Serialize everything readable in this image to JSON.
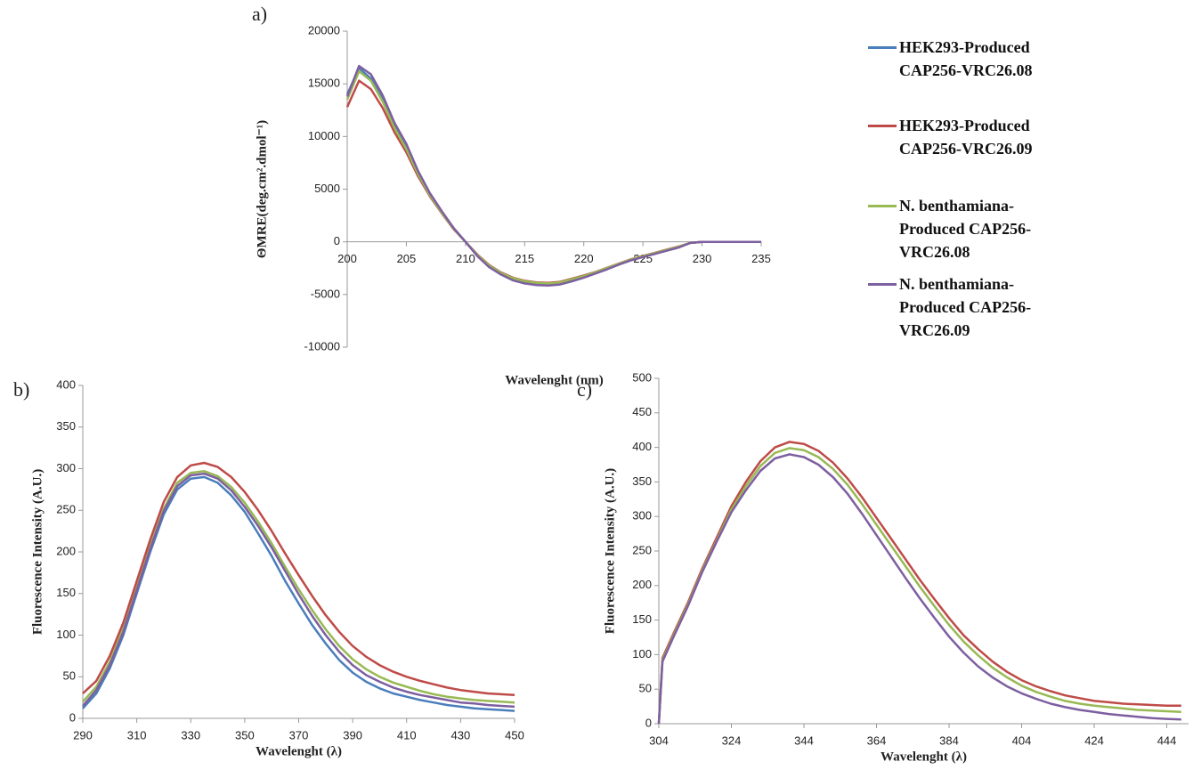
{
  "chart_data": [
    {
      "type": "line",
      "label": "a)",
      "x_label": "Wavelenght (nm)",
      "y_label": "ΘMRE(deg.cm².dmol⁻¹)",
      "x": [
        200,
        201,
        202,
        203,
        204,
        205,
        206,
        207,
        208,
        209,
        210,
        211,
        212,
        213,
        214,
        215,
        216,
        217,
        218,
        219,
        220,
        221,
        222,
        223,
        224,
        225,
        226,
        227,
        228,
        229,
        230,
        231,
        232,
        233,
        234,
        235
      ],
      "xlim": [
        200,
        235
      ],
      "xticks": [
        200,
        205,
        210,
        215,
        220,
        225,
        230,
        235
      ],
      "ylim": [
        -10000,
        20000
      ],
      "yticks": [
        -10000,
        -5000,
        0,
        5000,
        10000,
        15000,
        20000
      ],
      "series": [
        {
          "name": "HEK293-Produced CAP256-VRC26.08",
          "color": "#4a7ebb",
          "values": [
            14000,
            16500,
            15500,
            13500,
            11000,
            9000,
            6500,
            4500,
            2800,
            1300,
            0,
            -1300,
            -2300,
            -3000,
            -3500,
            -3800,
            -3950,
            -4000,
            -3900,
            -3600,
            -3300,
            -2900,
            -2500,
            -2100,
            -1700,
            -1400,
            -1100,
            -800,
            -500,
            -100,
            0,
            0,
            0,
            0,
            0,
            0
          ]
        },
        {
          "name": "HEK293-Produced CAP256-VRC26.09",
          "color": "#be4b48",
          "values": [
            12800,
            15300,
            14500,
            12700,
            10400,
            8500,
            6200,
            4300,
            2700,
            1200,
            0,
            -1200,
            -2200,
            -2900,
            -3400,
            -3700,
            -3850,
            -3900,
            -3800,
            -3500,
            -3200,
            -2850,
            -2450,
            -2050,
            -1650,
            -1350,
            -1050,
            -750,
            -450,
            -100,
            0,
            0,
            0,
            0,
            0,
            0
          ]
        },
        {
          "name": "N. benthamiana-Produced CAP256-VRC26.08",
          "color": "#98b954",
          "values": [
            13500,
            16200,
            15300,
            13300,
            10800,
            8800,
            6400,
            4400,
            2750,
            1250,
            0,
            -1250,
            -2250,
            -2950,
            -3450,
            -3750,
            -3900,
            -3950,
            -3850,
            -3550,
            -3250,
            -2875,
            -2475,
            -2075,
            -1675,
            -1375,
            -1075,
            -775,
            -475,
            -100,
            0,
            0,
            0,
            0,
            0,
            0
          ]
        },
        {
          "name": "N. benthamiana-Produced CAP256-VRC26.09",
          "color": "#7d5fa0",
          "values": [
            13800,
            16700,
            15900,
            13900,
            11300,
            9300,
            6700,
            4600,
            2900,
            1300,
            0,
            -1350,
            -2400,
            -3100,
            -3650,
            -3950,
            -4100,
            -4150,
            -4050,
            -3750,
            -3400,
            -3000,
            -2600,
            -2150,
            -1750,
            -1450,
            -1150,
            -850,
            -550,
            -100,
            0,
            0,
            0,
            0,
            0,
            0
          ]
        }
      ]
    },
    {
      "type": "line",
      "label": "b)",
      "x_label": "Wavelenght (λ)",
      "y_label": "Fluorescence Intensity (A.U.)",
      "x": [
        290,
        295,
        300,
        305,
        310,
        315,
        320,
        325,
        330,
        335,
        340,
        345,
        350,
        355,
        360,
        365,
        370,
        375,
        380,
        385,
        390,
        395,
        400,
        405,
        410,
        415,
        420,
        425,
        430,
        435,
        440,
        445,
        450
      ],
      "xlim": [
        290,
        450
      ],
      "xticks": [
        290,
        310,
        330,
        350,
        370,
        390,
        410,
        430,
        450
      ],
      "ylim": [
        0,
        400
      ],
      "yticks": [
        0,
        50,
        100,
        150,
        200,
        250,
        300,
        350,
        400
      ],
      "series": [
        {
          "color": "#4a7ebb",
          "values": [
            12,
            30,
            60,
            100,
            150,
            200,
            245,
            275,
            288,
            290,
            283,
            268,
            248,
            222,
            195,
            165,
            138,
            112,
            90,
            70,
            55,
            44,
            36,
            30,
            26,
            22,
            19,
            16,
            14,
            12,
            11,
            10,
            9
          ]
        },
        {
          "color": "#98b954",
          "values": [
            20,
            38,
            68,
            108,
            158,
            208,
            252,
            283,
            295,
            297,
            291,
            278,
            259,
            236,
            210,
            182,
            155,
            130,
            107,
            87,
            71,
            59,
            50,
            43,
            38,
            33,
            29,
            26,
            24,
            22,
            21,
            20,
            19
          ]
        },
        {
          "color": "#7d5fa0",
          "values": [
            15,
            34,
            64,
            104,
            154,
            204,
            249,
            279,
            292,
            294,
            288,
            274,
            254,
            231,
            205,
            177,
            149,
            123,
            100,
            80,
            64,
            52,
            44,
            37,
            32,
            28,
            25,
            22,
            19,
            18,
            16,
            15,
            14
          ]
        },
        {
          "color": "#be4b48",
          "values": [
            30,
            45,
            75,
            115,
            165,
            215,
            260,
            290,
            304,
            307,
            302,
            290,
            272,
            250,
            225,
            198,
            172,
            147,
            124,
            104,
            87,
            74,
            64,
            56,
            50,
            45,
            41,
            37,
            34,
            32,
            30,
            29,
            28
          ]
        }
      ]
    },
    {
      "type": "line",
      "label": "c)",
      "x_label": "Wavelenght (λ)",
      "y_label": "Fluorescence Intensity (A.U.)",
      "x": [
        304,
        305,
        308,
        312,
        316,
        320,
        324,
        328,
        332,
        336,
        340,
        344,
        348,
        352,
        356,
        360,
        364,
        368,
        372,
        376,
        380,
        384,
        388,
        392,
        396,
        400,
        404,
        408,
        412,
        416,
        420,
        424,
        428,
        432,
        436,
        440,
        444,
        448
      ],
      "xlim": [
        304,
        450
      ],
      "xticks": [
        304,
        324,
        344,
        364,
        384,
        404,
        424,
        444
      ],
      "ylim": [
        0,
        500
      ],
      "yticks": [
        0,
        50,
        100,
        150,
        200,
        250,
        300,
        350,
        400,
        450,
        500
      ],
      "series": [
        {
          "color": "#be4b48",
          "values": [
            0,
            95,
            130,
            175,
            225,
            270,
            315,
            350,
            380,
            400,
            408,
            405,
            395,
            378,
            355,
            328,
            298,
            268,
            238,
            208,
            180,
            153,
            128,
            108,
            90,
            75,
            63,
            54,
            47,
            41,
            37,
            33,
            31,
            29,
            28,
            27,
            26,
            26
          ]
        },
        {
          "color": "#98b954",
          "values": [
            0,
            92,
            127,
            172,
            222,
            266,
            310,
            344,
            373,
            392,
            399,
            396,
            386,
            369,
            346,
            318,
            288,
            258,
            228,
            198,
            170,
            143,
            119,
            99,
            81,
            67,
            55,
            46,
            39,
            33,
            29,
            26,
            24,
            22,
            20,
            19,
            18,
            17
          ]
        },
        {
          "color": "#7d5fa0",
          "values": [
            0,
            90,
            125,
            170,
            220,
            264,
            306,
            338,
            366,
            384,
            390,
            386,
            375,
            357,
            333,
            304,
            273,
            242,
            211,
            181,
            153,
            126,
            103,
            83,
            67,
            54,
            44,
            36,
            29,
            24,
            20,
            17,
            14,
            12,
            10,
            8,
            7,
            6
          ]
        }
      ]
    }
  ]
}
